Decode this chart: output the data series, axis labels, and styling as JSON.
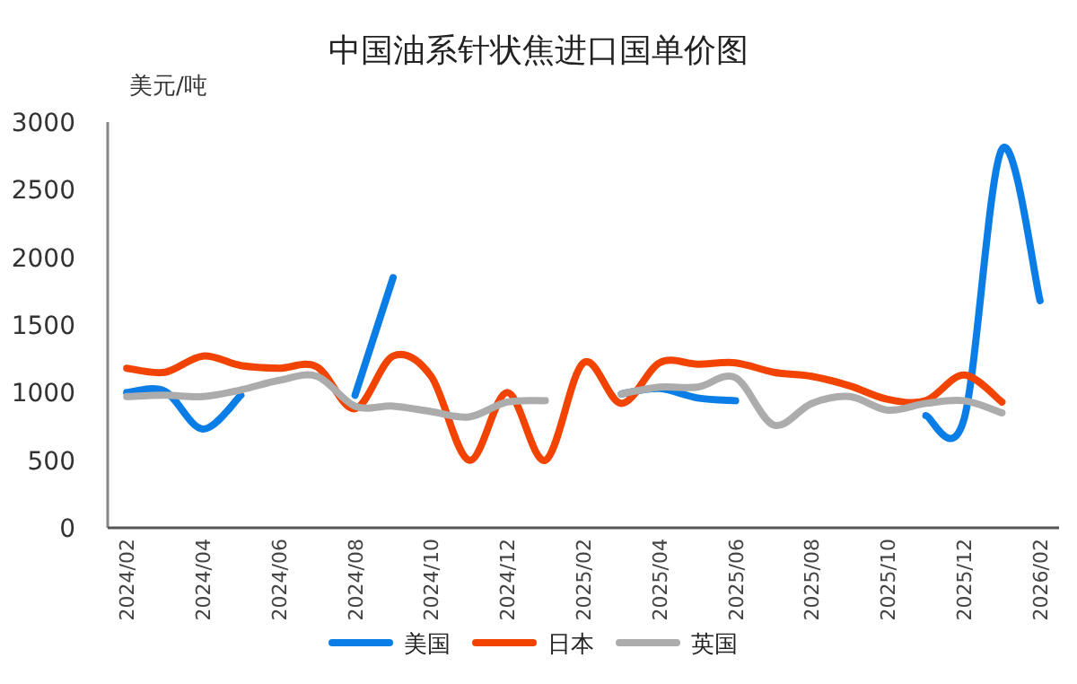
{
  "chart_data": {
    "type": "line",
    "title": "中国油系针状焦进口国单价图",
    "ylabel": "美元/吨",
    "categories": [
      "2024/02",
      null,
      "2024/04",
      null,
      "2024/06",
      null,
      "2024/08",
      null,
      "2024/10",
      null,
      "2024/12",
      null,
      "2025/02",
      null,
      "2025/04",
      null,
      "2025/06",
      null,
      "2025/08",
      null,
      "2025/10",
      null,
      "2025/12",
      null,
      "2026/02"
    ],
    "series": [
      {
        "name": "美国",
        "color": "#0a7ee6",
        "values": [
          1000,
          1010,
          730,
          980,
          null,
          null,
          980,
          1850,
          null,
          null,
          null,
          null,
          null,
          990,
          1030,
          960,
          940,
          null,
          null,
          null,
          null,
          830,
          800,
          2800,
          1680
        ]
      },
      {
        "name": "日本",
        "color": "#f24300",
        "values": [
          1180,
          1150,
          1270,
          1200,
          1180,
          1190,
          880,
          1270,
          1120,
          500,
          1000,
          500,
          1220,
          920,
          1220,
          1210,
          1220,
          1150,
          1120,
          1050,
          950,
          940,
          1130,
          930,
          null
        ]
      },
      {
        "name": "英国",
        "color": "#acacac",
        "values": [
          970,
          980,
          970,
          1020,
          1090,
          1120,
          900,
          900,
          860,
          820,
          930,
          940,
          null,
          990,
          1040,
          1040,
          1110,
          760,
          920,
          970,
          870,
          920,
          940,
          850,
          null
        ]
      }
    ],
    "ylim": [
      0,
      3000
    ],
    "yticks": [
      0,
      500,
      1000,
      1500,
      2000,
      2500,
      3000
    ],
    "grid": false,
    "legend": "bottom",
    "line_style": "solid",
    "marker": "none"
  }
}
